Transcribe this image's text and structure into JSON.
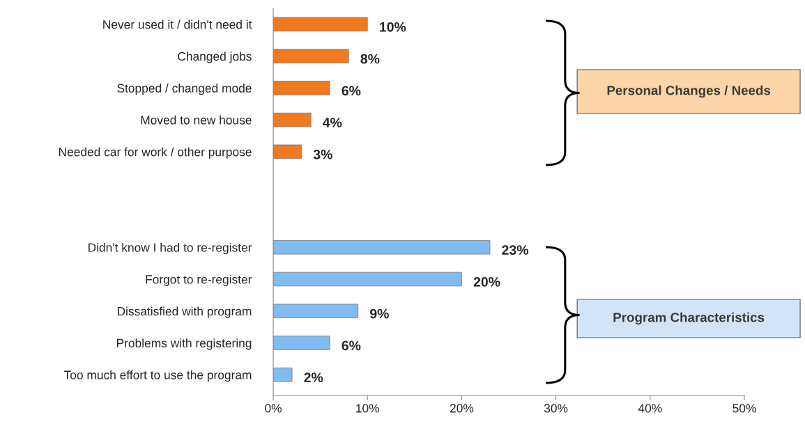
{
  "chart_data": {
    "type": "bar",
    "orientation": "horizontal",
    "categories": [
      "Never used it / didn't need it",
      "Changed jobs",
      "Stopped / changed mode",
      "Moved to new house",
      "Needed car for work / other purpose",
      null,
      null,
      "Didn't know I had to re-register",
      "Forgot to re-register",
      "Dissatisfied with program",
      "Problems with registering",
      "Too much effort to use the program"
    ],
    "values": [
      10,
      8,
      6,
      4,
      3,
      null,
      null,
      23,
      20,
      9,
      6,
      2
    ],
    "value_labels": [
      "10%",
      "8%",
      "6%",
      "4%",
      "3%",
      null,
      null,
      "23%",
      "20%",
      "9%",
      "6%",
      "2%"
    ],
    "colors": [
      "#f07a1f",
      "#f07a1f",
      "#f07a1f",
      "#f07a1f",
      "#f07a1f",
      null,
      null,
      "#80bcf2",
      "#80bcf2",
      "#80bcf2",
      "#80bcf2",
      "#80bcf2"
    ],
    "xlim": [
      0,
      50
    ],
    "xticks": [
      {
        "value": 0,
        "label": "0%"
      },
      {
        "value": 10,
        "label": "10%"
      },
      {
        "value": 20,
        "label": "20%"
      },
      {
        "value": 30,
        "label": "30%"
      },
      {
        "value": 40,
        "label": "40%"
      },
      {
        "value": 50,
        "label": "50%"
      }
    ],
    "annotations": [
      "Personal Changes / Needs",
      "Program Characteristics"
    ],
    "grid": false,
    "legend": false
  }
}
